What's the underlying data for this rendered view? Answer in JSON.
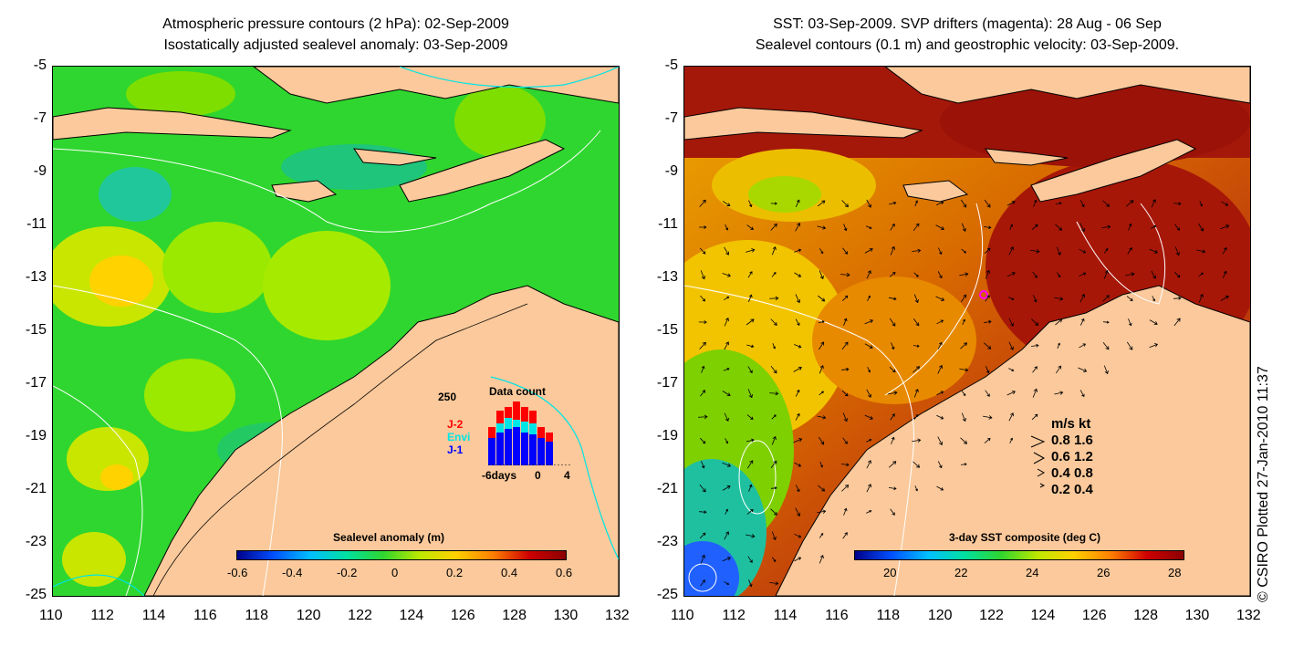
{
  "left": {
    "title_line1": "Atmospheric pressure contours (2 hPa): 02-Sep-2009",
    "title_line2": "Isostatically adjusted sealevel anomaly: 03-Sep-2009",
    "colorbar_label": "Sealevel anomaly (m)",
    "colorbar_ticks": [
      "-0.6",
      "-0.4",
      "-0.2",
      "0",
      "0.2",
      "0.4",
      "0.6"
    ],
    "data_count": {
      "title": "Data count",
      "ymax_label": "250",
      "legend": [
        {
          "name": "J-2",
          "color": "#ff0000"
        },
        {
          "name": "Envi",
          "color": "#00e5e5"
        },
        {
          "name": "J-1",
          "color": "#0000ff"
        }
      ],
      "x_labels": [
        "-6days",
        "0",
        "4"
      ]
    }
  },
  "right": {
    "title_line1": "SST: 03-Sep-2009. SVP drifters (magenta): 28 Aug - 06 Sep",
    "title_line2": "Sealevel contours (0.1 m) and geostrophic velocity: 03-Sep-2009.",
    "colorbar_label": "3-day SST composite (deg C)",
    "colorbar_ticks": [
      "20",
      "22",
      "24",
      "26",
      "28"
    ],
    "speed_legend": {
      "header": "m/s  kt",
      "rows": [
        "0.8  1.6",
        "0.6  1.2",
        "0.4  0.8",
        "0.2  0.4"
      ]
    }
  },
  "axes": {
    "y_ticks": [
      "-5",
      "-7",
      "-9",
      "-11",
      "-13",
      "-15",
      "-17",
      "-19",
      "-21",
      "-23",
      "-25"
    ],
    "x_ticks": [
      "110",
      "112",
      "114",
      "116",
      "118",
      "120",
      "122",
      "124",
      "126",
      "128",
      "130",
      "132"
    ]
  },
  "credit": "© CSIRO Plotted 27-Jan-2010 11:37",
  "colors": {
    "land": "#fbc99b",
    "sla_base": "#2fd62f",
    "sst_warm": "#b41e0a"
  }
}
